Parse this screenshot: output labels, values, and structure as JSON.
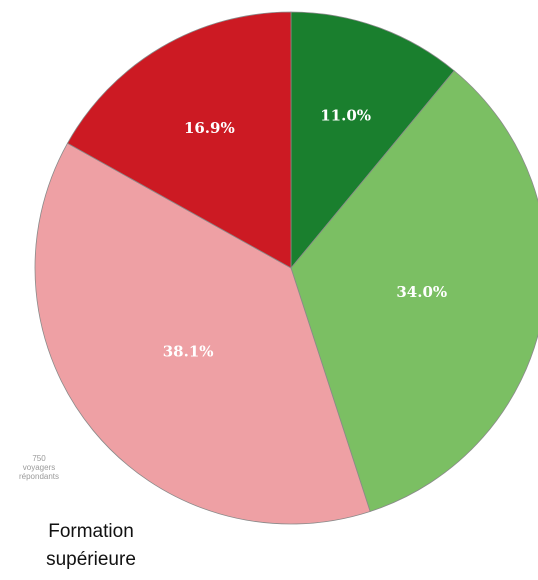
{
  "chart_data": {
    "type": "pie",
    "slices": [
      {
        "label": "11.0%",
        "value": 11.0,
        "color": "#1a7f2e"
      },
      {
        "label": "34.0%",
        "value": 34.0,
        "color": "#7bbf63"
      },
      {
        "label": "38.1%",
        "value": 38.1,
        "color": "#eea0a4"
      },
      {
        "label": "16.9%",
        "value": 16.9,
        "color": "#cc1a23"
      }
    ],
    "label_color": "#ffffff",
    "start": "top, clockwise"
  },
  "note": {
    "line1": "750",
    "line2": "voyagers",
    "line3": "répondants"
  },
  "caption": {
    "line1": "Formation",
    "line2": "supérieure"
  }
}
